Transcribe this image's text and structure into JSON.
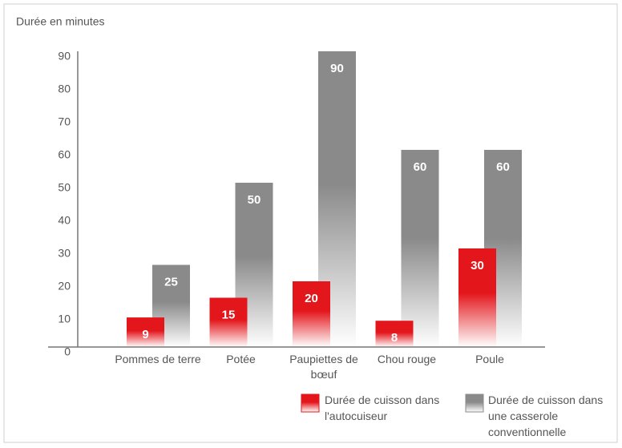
{
  "chart_data": {
    "type": "bar",
    "y_axis_label": "Durée en minutes",
    "categories": [
      "Pommes de terre",
      "Potée",
      "Paupiettes de bœuf",
      "Chou rouge",
      "Poule"
    ],
    "series": [
      {
        "name": "Durée de cuisson dans l'autocuiseur",
        "color": "#e3161c",
        "values": [
          9,
          15,
          20,
          8,
          30
        ]
      },
      {
        "name": "Durée de cuisson dans une casserole conventionnelle",
        "color": "#8a8a8a",
        "values": [
          25,
          50,
          90,
          60,
          60
        ]
      }
    ],
    "ylim": [
      0,
      90
    ],
    "yticks": [
      0,
      10,
      20,
      30,
      40,
      50,
      60,
      70,
      80,
      90
    ],
    "grid": false
  }
}
